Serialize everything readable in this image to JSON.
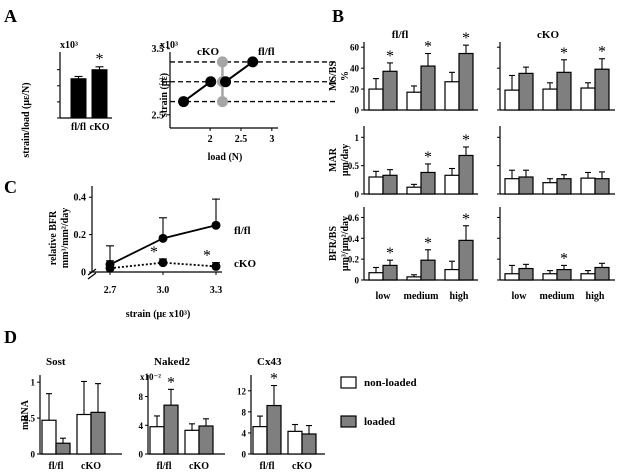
{
  "panels": {
    "A": "A",
    "B": "B",
    "C": "C",
    "D": "D"
  },
  "colors": {
    "loaded": "#7f7f7f",
    "nonloaded": "#ffffff",
    "cko_line": "#a6a6a6",
    "bar_black": "#000000"
  },
  "chart_data": [
    {
      "id": "A-left",
      "type": "bar",
      "categories": [
        "fl/fl",
        "cKO"
      ],
      "values": [
        1.22,
        1.5
      ],
      "errors": [
        0.07,
        0.09
      ],
      "ylabel": "strain/load (με/N)",
      "multiplier": "x10³",
      "yticks": [
        "0",
        "0.5",
        "1",
        "1.5"
      ],
      "ylim": [
        0,
        2.05
      ],
      "annotations": [
        {
          "category": "cKO",
          "text": "*"
        }
      ]
    },
    {
      "id": "A-right",
      "type": "line",
      "xlabel": "load (N)",
      "ylabel": "strain (με)",
      "multiplier": "x10³",
      "xticks": [
        "2",
        "2.5",
        "3"
      ],
      "yticks": [
        "2.5",
        "3",
        "3.5"
      ],
      "xlim": [
        1.35,
        3.1
      ],
      "ylim": [
        2.3,
        3.45
      ],
      "reference_lines": [
        2.7,
        3.0,
        3.3
      ],
      "series": [
        {
          "name": "cKO",
          "x": [
            2.2,
            2.2,
            2.2
          ],
          "y": [
            2.7,
            3.0,
            3.3
          ]
        },
        {
          "name": "fl/fl",
          "x": [
            1.57,
            2.01,
            2.25,
            2.69
          ],
          "y": [
            2.7,
            3.0,
            3.0,
            3.3
          ]
        }
      ]
    },
    {
      "id": "B",
      "type": "bar",
      "categories": [
        "low",
        "medium",
        "high"
      ],
      "columns": [
        "fl/fl",
        "cKO"
      ],
      "legend": [
        "non-loaded",
        "loaded"
      ],
      "rows": [
        {
          "ylabel": "MS/BS",
          "unit": "%",
          "yticks": [
            "0",
            "20",
            "40",
            "60"
          ],
          "ylim": [
            0,
            65
          ],
          "fl/fl": {
            "nonloaded": [
              20,
              17,
              27
            ],
            "loaded": [
              37,
              42,
              54
            ],
            "err_nonloaded": [
              10,
              6,
              9
            ],
            "err_loaded": [
              8,
              12,
              8
            ],
            "stars": [
              "*",
              "*",
              "*"
            ]
          },
          "cKO": {
            "nonloaded": [
              19,
              20,
              21
            ],
            "loaded": [
              35,
              36,
              39
            ],
            "err_nonloaded": [
              14,
              6,
              5
            ],
            "err_loaded": [
              6,
              12,
              10
            ],
            "stars": [
              "",
              "*",
              "*"
            ]
          }
        },
        {
          "ylabel": "MAR",
          "unit": "μm/day",
          "yticks": [
            "0",
            "0.5",
            "1"
          ],
          "ylim": [
            0,
            1.2
          ],
          "fl/fl": {
            "nonloaded": [
              0.3,
              0.12,
              0.33
            ],
            "loaded": [
              0.33,
              0.38,
              0.68
            ],
            "err_nonloaded": [
              0.1,
              0.05,
              0.12
            ],
            "err_loaded": [
              0.1,
              0.15,
              0.15
            ],
            "stars": [
              "",
              "*",
              "*"
            ]
          },
          "cKO": {
            "nonloaded": [
              0.27,
              0.2,
              0.28
            ],
            "loaded": [
              0.3,
              0.27,
              0.27
            ],
            "err_nonloaded": [
              0.15,
              0.07,
              0.1
            ],
            "err_loaded": [
              0.12,
              0.07,
              0.12
            ],
            "stars": [
              "",
              "",
              ""
            ]
          }
        },
        {
          "ylabel": "BFR/BS",
          "unit": "μm³/μm²/day",
          "yticks": [
            "0",
            "0.2",
            "0.4",
            "0.6"
          ],
          "ylim": [
            0,
            0.7
          ],
          "fl/fl": {
            "nonloaded": [
              0.07,
              0.03,
              0.1
            ],
            "loaded": [
              0.14,
              0.19,
              0.38
            ],
            "err_nonloaded": [
              0.05,
              0.02,
              0.08
            ],
            "err_loaded": [
              0.05,
              0.1,
              0.14
            ],
            "stars": [
              "*",
              "*",
              "*"
            ]
          },
          "cKO": {
            "nonloaded": [
              0.06,
              0.06,
              0.06
            ],
            "loaded": [
              0.11,
              0.1,
              0.12
            ],
            "err_nonloaded": [
              0.08,
              0.03,
              0.03
            ],
            "err_loaded": [
              0.04,
              0.04,
              0.04
            ],
            "stars": [
              "",
              "*",
              ""
            ]
          }
        }
      ]
    },
    {
      "id": "C",
      "type": "line",
      "xlabel": "strain (με x10³)",
      "ylabel_line1": "relative BFR",
      "ylabel_line2": "mm³/mm²/day",
      "categories": [
        "2.7",
        "3.0",
        "3.3"
      ],
      "yticks": [
        "0",
        "0.2",
        "0.4"
      ],
      "ylim": [
        0,
        0.46
      ],
      "series": [
        {
          "name": "fl/fl",
          "values": [
            0.04,
            0.18,
            0.25
          ],
          "errors": [
            0.1,
            0.11,
            0.14
          ],
          "style": "solid"
        },
        {
          "name": "cKO",
          "values": [
            0.02,
            0.05,
            0.03
          ],
          "errors": [
            0.04,
            0.02,
            0.02
          ],
          "style": "dotted"
        }
      ],
      "annotations": [
        {
          "x": "3.0",
          "text": "*"
        },
        {
          "x": "3.3",
          "text": "*"
        }
      ]
    },
    {
      "id": "D",
      "type": "bar",
      "ylabel": "mRNA",
      "groups": [
        "fl/fl",
        "cKO"
      ],
      "subpanels": [
        {
          "title": "Sost",
          "multiplier": "",
          "yticks": [
            "0",
            "0.5",
            "1"
          ],
          "ylim": [
            0,
            1.1
          ],
          "nonloaded": [
            0.47,
            0.55
          ],
          "loaded": [
            0.15,
            0.58
          ],
          "err_nonloaded": [
            0.37,
            0.46
          ],
          "err_loaded": [
            0.07,
            0.4
          ],
          "stars": [
            "",
            ""
          ]
        },
        {
          "title": "Naked2",
          "multiplier": "x10⁻²",
          "yticks": [
            "0",
            "4",
            "8"
          ],
          "ylim": [
            0,
            11
          ],
          "nonloaded": [
            3.8,
            3.3
          ],
          "loaded": [
            6.8,
            3.9
          ],
          "err_nonloaded": [
            1.5,
            0.9
          ],
          "err_loaded": [
            2.2,
            1.0
          ],
          "stars": [
            "*",
            ""
          ]
        },
        {
          "title": "Cx43",
          "multiplier": "",
          "yticks": [
            "0",
            "4",
            "8",
            "12"
          ],
          "ylim": [
            0,
            15
          ],
          "nonloaded": [
            5.2,
            4.3
          ],
          "loaded": [
            9.2,
            3.8
          ],
          "err_nonloaded": [
            2.0,
            1.3
          ],
          "err_loaded": [
            3.8,
            1.6
          ],
          "stars": [
            "*",
            ""
          ]
        }
      ]
    }
  ]
}
